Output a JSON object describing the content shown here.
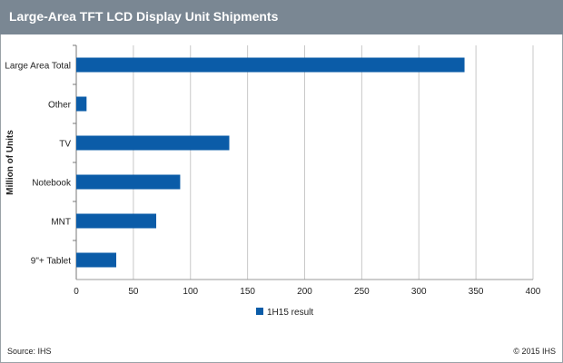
{
  "header": {
    "title": "Large-Area TFT LCD Display Unit Shipments"
  },
  "footer": {
    "source": "Source: IHS",
    "copyright": "© 2015 IHS"
  },
  "colors": {
    "header_bg": "#7a8793",
    "bar": "#0b5ca8",
    "grid": "#c8c8c8"
  },
  "chart_data": {
    "type": "bar",
    "orientation": "horizontal",
    "categories": [
      "Large Area Total",
      "Other",
      "TV",
      "Notebook",
      "MNT",
      "9\"+ Tablet"
    ],
    "series": [
      {
        "name": "1H15 result",
        "values": [
          340,
          9,
          134,
          91,
          70,
          35
        ]
      }
    ],
    "ylabel": "Million of Units",
    "xlabel": "",
    "xlim": [
      0,
      400
    ],
    "xticks": [
      "0",
      "50",
      "100",
      "150",
      "200",
      "250",
      "300",
      "350",
      "400"
    ],
    "grid": true,
    "legend": "bottom"
  }
}
